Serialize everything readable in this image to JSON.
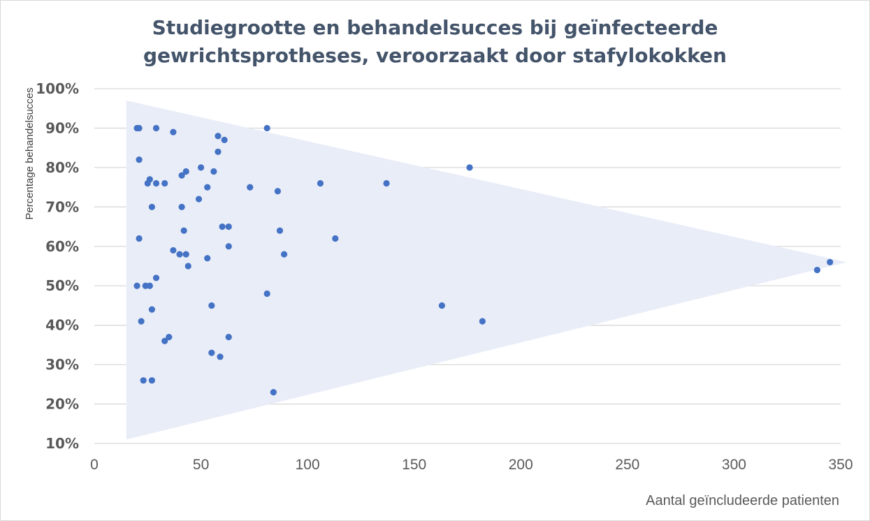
{
  "chart_data": {
    "type": "scatter",
    "title_line1": "Studiegrootte en behandelsucces bij geïnfecteerde",
    "title_line2": "gewrichtsprotheses, veroorzaakt door stafylokokken",
    "xlabel": "Aantal geïncludeerde patienten",
    "ylabel": "Percentage behandelsucces",
    "xlim": [
      0,
      350
    ],
    "ylim": [
      10,
      100
    ],
    "x_ticks": [
      "0",
      "50",
      "100",
      "150",
      "200",
      "250",
      "300",
      "350"
    ],
    "y_ticks": [
      "10%",
      "20%",
      "30%",
      "40%",
      "50%",
      "60%",
      "70%",
      "80%",
      "90%",
      "100%"
    ],
    "grid": "horizontal",
    "colors": {
      "points": "#4472c4",
      "funnel": "#e9edf8",
      "grid": "#d9d9d9"
    },
    "funnel": [
      [
        15,
        97
      ],
      [
        15,
        11
      ],
      [
        353,
        56
      ]
    ],
    "points": [
      [
        20,
        90
      ],
      [
        21,
        90
      ],
      [
        29,
        90
      ],
      [
        37,
        89
      ],
      [
        81,
        90
      ],
      [
        58,
        88
      ],
      [
        61,
        87
      ],
      [
        58,
        84
      ],
      [
        21,
        82
      ],
      [
        50,
        80
      ],
      [
        56,
        79
      ],
      [
        43,
        79
      ],
      [
        41,
        78
      ],
      [
        176,
        80
      ],
      [
        26,
        77
      ],
      [
        25,
        76
      ],
      [
        29,
        76
      ],
      [
        33,
        76
      ],
      [
        53,
        75
      ],
      [
        73,
        75
      ],
      [
        86,
        74
      ],
      [
        106,
        76
      ],
      [
        137,
        76
      ],
      [
        49,
        72
      ],
      [
        27,
        70
      ],
      [
        41,
        70
      ],
      [
        60,
        65
      ],
      [
        63,
        65
      ],
      [
        42,
        64
      ],
      [
        87,
        64
      ],
      [
        21,
        62
      ],
      [
        113,
        62
      ],
      [
        63,
        60
      ],
      [
        37,
        59
      ],
      [
        40,
        58
      ],
      [
        43,
        58
      ],
      [
        89,
        58
      ],
      [
        53,
        57
      ],
      [
        44,
        55
      ],
      [
        339,
        54
      ],
      [
        345,
        56
      ],
      [
        29,
        52
      ],
      [
        20,
        50
      ],
      [
        24,
        50
      ],
      [
        26,
        50
      ],
      [
        81,
        48
      ],
      [
        55,
        45
      ],
      [
        27,
        44
      ],
      [
        163,
        45
      ],
      [
        22,
        41
      ],
      [
        182,
        41
      ],
      [
        35,
        37
      ],
      [
        33,
        36
      ],
      [
        63,
        37
      ],
      [
        55,
        33
      ],
      [
        59,
        32
      ],
      [
        23,
        26
      ],
      [
        27,
        26
      ],
      [
        84,
        23
      ]
    ]
  }
}
